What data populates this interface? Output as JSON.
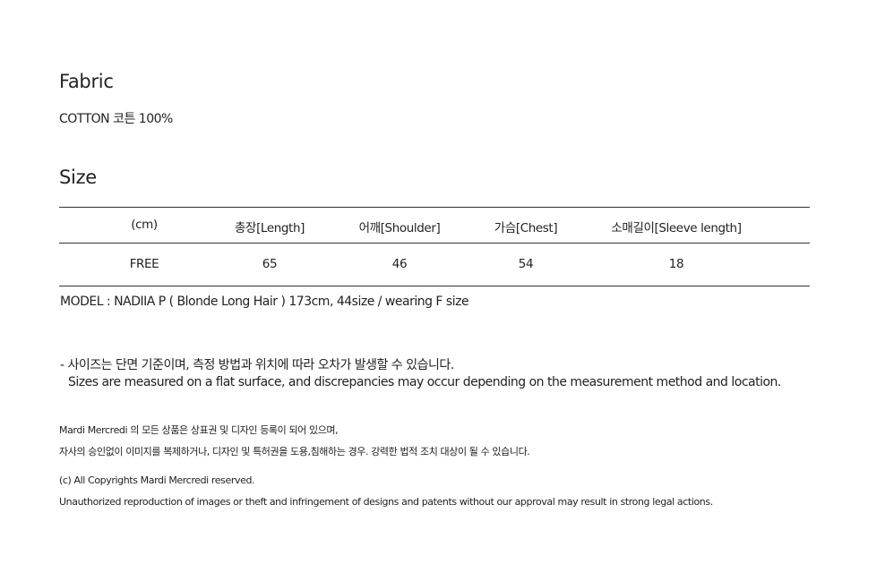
{
  "fabric": {
    "title": "Fabric",
    "value": "COTTON 코튼 100%"
  },
  "size": {
    "title": "Size",
    "headers": [
      "(cm)",
      "총장[Length]",
      "어깨[Shoulder]",
      "가슴[Chest]",
      "소매길이[Sleeve length]"
    ],
    "rows": [
      [
        "FREE",
        "65",
        "46",
        "54",
        "18"
      ]
    ]
  },
  "model": "MODEL : NADIIA P ( Blonde Long Hair ) 173cm, 44size / wearing  F size",
  "notice": {
    "ko": "- 사이즈는 단면 기준이며, 측정 방법과 위치에 따라 오차가 발생할 수 있습니다.",
    "en": "Sizes are measured on a flat surface, and discrepancies may occur depending on the measurement method and location."
  },
  "legal": {
    "ko1": "Mardi Mercredi 의 모든 상품은 상표권 및 디자인 등록이 되어 있으며,",
    "ko2": "자사의 승인없이 이미지를 복제하거나, 디자인 및 특허권을 도용,침해하는 경우. 강력한 법적 조치 대상이 될 수 있습니다.",
    "en1": "(c) All Copyrights Mardi Mercredi reserved.",
    "en2": "Unauthorized reproduction of images or theft and infringement of designs and patents without our approval may result in strong legal actions."
  }
}
